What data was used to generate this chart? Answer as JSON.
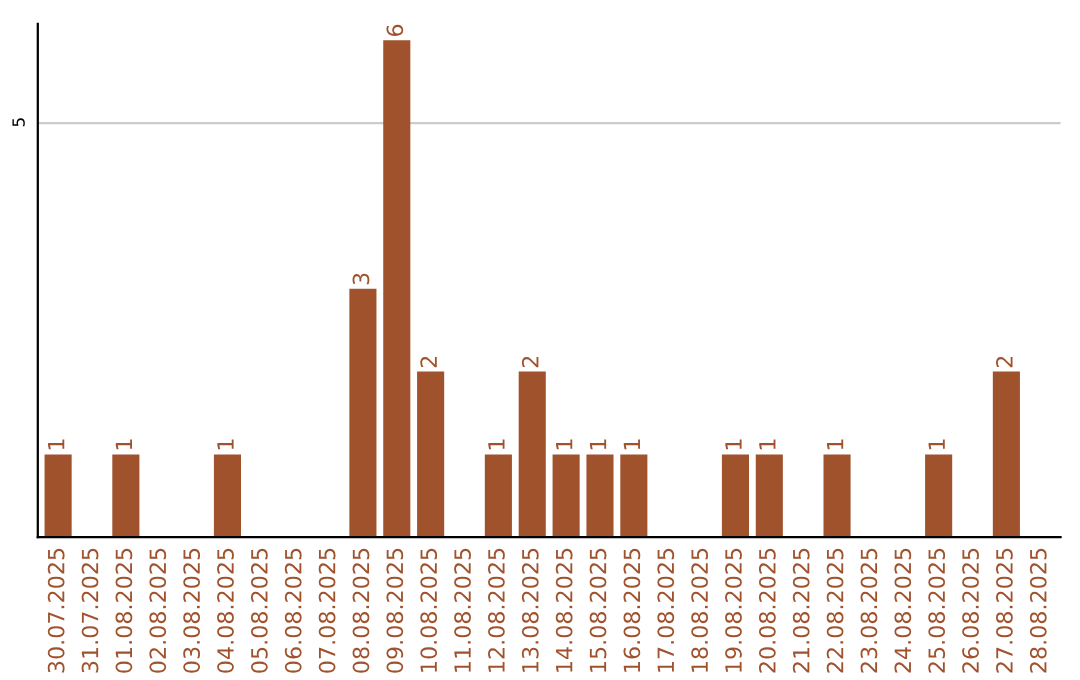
{
  "chart_data": {
    "type": "bar",
    "categories": [
      "30.07.2025",
      "31.07.2025",
      "01.08.2025",
      "02.08.2025",
      "03.08.2025",
      "04.08.2025",
      "05.08.2025",
      "06.08.2025",
      "07.08.2025",
      "08.08.2025",
      "09.08.2025",
      "10.08.2025",
      "11.08.2025",
      "12.08.2025",
      "13.08.2025",
      "14.08.2025",
      "15.08.2025",
      "16.08.2025",
      "17.08.2025",
      "18.08.2025",
      "19.08.2025",
      "20.08.2025",
      "21.08.2025",
      "22.08.2025",
      "23.08.2025",
      "24.08.2025",
      "25.08.2025",
      "26.08.2025",
      "27.08.2025",
      "28.08.2025"
    ],
    "values": [
      1,
      0,
      1,
      0,
      0,
      1,
      0,
      0,
      0,
      3,
      6,
      2,
      0,
      1,
      2,
      1,
      1,
      1,
      0,
      0,
      1,
      1,
      0,
      1,
      0,
      0,
      1,
      0,
      2,
      0
    ],
    "value_labels": [
      "1",
      null,
      "1",
      null,
      null,
      "1",
      null,
      null,
      null,
      "3",
      "6",
      "2",
      null,
      "1",
      "2",
      "1",
      "1",
      "1",
      null,
      null,
      "1",
      "1",
      null,
      "1",
      null,
      null,
      "1",
      null,
      "2",
      null
    ],
    "color": "#a0522d",
    "ylim": [
      0,
      6.2
    ],
    "yticks": [
      5
    ],
    "grid": "y"
  }
}
